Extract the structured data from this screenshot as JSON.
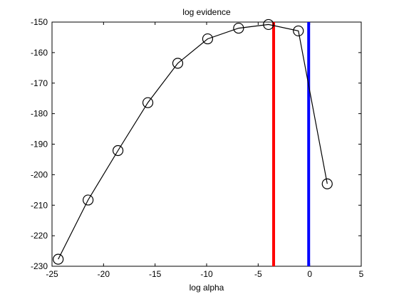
{
  "chart_data": {
    "type": "line",
    "title": "log evidence",
    "xlabel": "log alpha",
    "ylabel": "",
    "xlim": [
      -25,
      5
    ],
    "ylim": [
      -230,
      -150
    ],
    "xticks": [
      -25,
      -20,
      -15,
      -10,
      -5,
      0,
      5
    ],
    "yticks": [
      -230,
      -220,
      -210,
      -200,
      -190,
      -180,
      -170,
      -160,
      -150
    ],
    "grid": false,
    "legend": "none",
    "series": [
      {
        "color": "#000000",
        "marker": "circle",
        "x": [
          -24.4,
          -21.5,
          -18.6,
          -15.7,
          -12.8,
          -9.9,
          -6.9,
          -4.0,
          -1.1,
          1.7
        ],
        "y": [
          -227.7,
          -208.3,
          -192.1,
          -176.4,
          -163.5,
          -155.5,
          -152.0,
          -150.8,
          -152.9,
          -203.0
        ]
      }
    ],
    "vlines": [
      {
        "x": -3.5,
        "color": "#ff0000"
      },
      {
        "x": -0.1,
        "color": "#0000ff"
      }
    ]
  }
}
